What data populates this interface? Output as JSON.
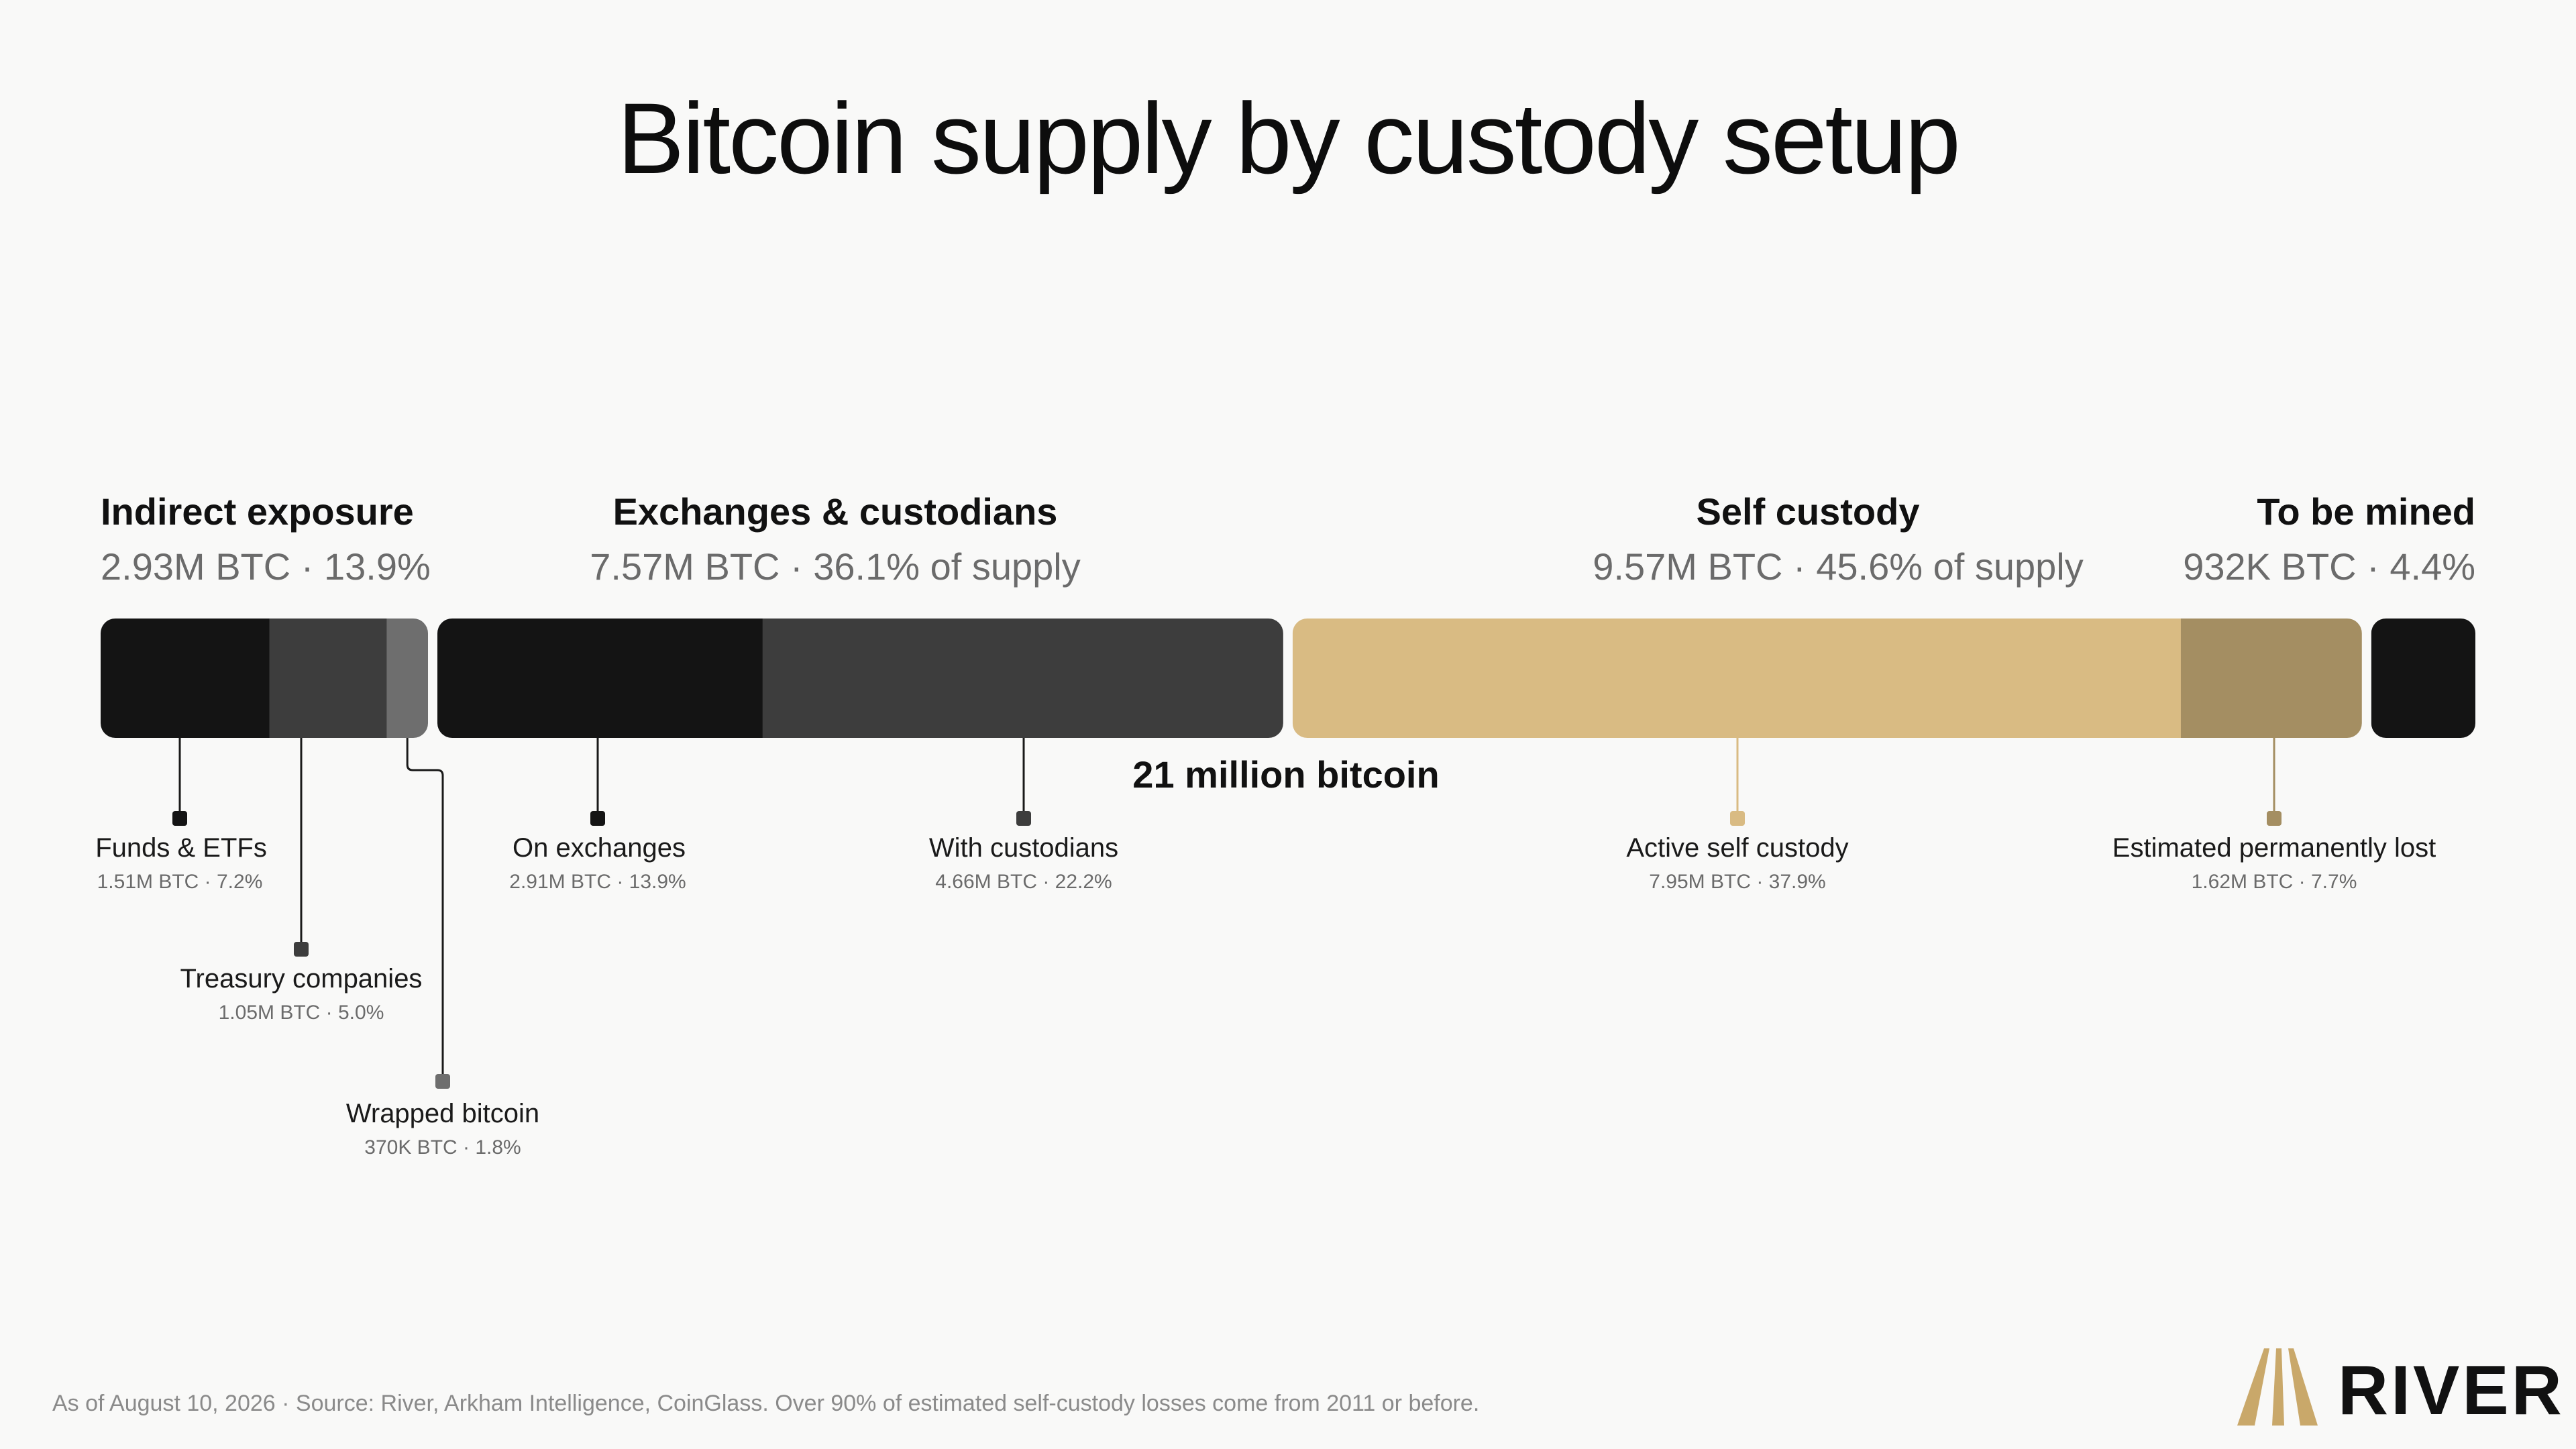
{
  "chart_data": {
    "type": "bar",
    "orientation": "horizontal-stacked",
    "title": "Bitcoin supply by custody setup",
    "total_label": "21 million bitcoin",
    "total_btc_millions": 21,
    "groups": [
      {
        "name": "Indirect exposure",
        "value_text": "2.93M BTC · 13.9%",
        "btc_millions": 2.93,
        "percent": 13.9,
        "segments": [
          {
            "name": "Funds & ETFs",
            "value_text": "1.51M BTC · 7.2%",
            "btc_millions": 1.51,
            "percent": 7.2,
            "color": "#141414"
          },
          {
            "name": "Treasury companies",
            "value_text": "1.05M BTC · 5.0%",
            "btc_millions": 1.05,
            "percent": 5.0,
            "color": "#3d3d3d"
          },
          {
            "name": "Wrapped bitcoin",
            "value_text": "370K BTC · 1.8%",
            "btc_millions": 0.37,
            "percent": 1.8,
            "color": "#6e6e6e"
          }
        ]
      },
      {
        "name": "Exchanges & custodians",
        "value_text": "7.57M BTC · 36.1% of supply",
        "btc_millions": 7.57,
        "percent": 36.1,
        "segments": [
          {
            "name": "On exchanges",
            "value_text": "2.91M BTC · 13.9%",
            "btc_millions": 2.91,
            "percent": 13.9,
            "color": "#141414"
          },
          {
            "name": "With custodians",
            "value_text": "4.66M BTC · 22.2%",
            "btc_millions": 4.66,
            "percent": 22.2,
            "color": "#3d3d3d"
          }
        ]
      },
      {
        "name": "Self custody",
        "value_text": "9.57M BTC · 45.6% of supply",
        "btc_millions": 9.57,
        "percent": 45.6,
        "segments": [
          {
            "name": "Active self custody",
            "value_text": "7.95M BTC · 37.9%",
            "btc_millions": 7.95,
            "percent": 37.9,
            "color": "#d9bb83"
          },
          {
            "name": "Estimated permanently lost",
            "value_text": "1.62M BTC · 7.7%",
            "btc_millions": 1.62,
            "percent": 7.7,
            "color": "#a48e62"
          }
        ]
      },
      {
        "name": "To be mined",
        "value_text": "932K BTC · 4.4%",
        "btc_millions": 0.932,
        "percent": 4.4,
        "segments": [
          {
            "name": "",
            "value_text": "",
            "btc_millions": 0.932,
            "percent": 4.4,
            "color": "#141414"
          }
        ]
      }
    ]
  },
  "footnote": "As of August 10, 2026 · Source: River, Arkham Intelligence, CoinGlass. Over 90% of estimated self-custody losses come from 2011 or before.",
  "brand": {
    "name": "RIVER",
    "icon": "river-logo-icon",
    "icon_color": "#c9a86a"
  },
  "colors": {
    "background": "#f9f9f8",
    "text": "#111111",
    "muted_text": "#6b6b6b"
  }
}
